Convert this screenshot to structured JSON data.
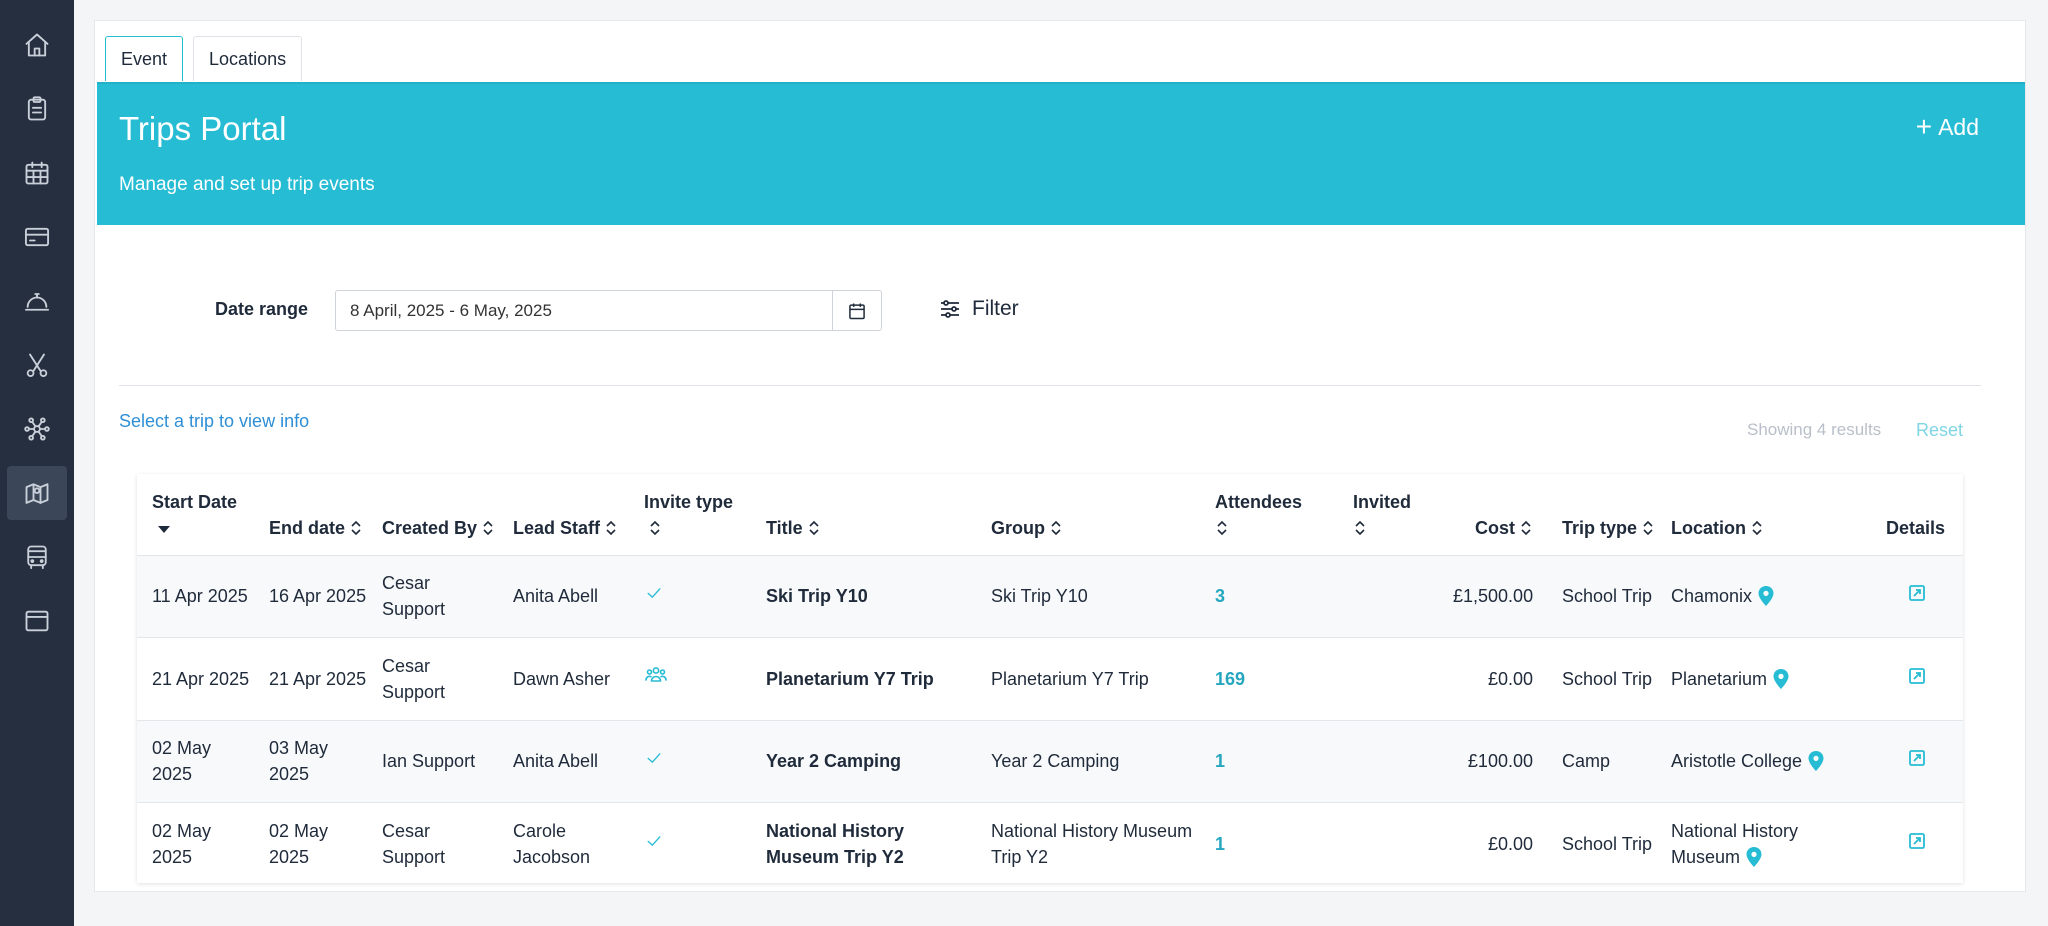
{
  "sidebar": {
    "items": [
      {
        "icon": "home-icon",
        "active": false
      },
      {
        "icon": "clipboard-icon",
        "active": false
      },
      {
        "icon": "calendar-grid-icon",
        "active": false
      },
      {
        "icon": "card-icon",
        "active": false
      },
      {
        "icon": "bell-service-icon",
        "active": false
      },
      {
        "icon": "scissors-icon",
        "active": false
      },
      {
        "icon": "network-icon",
        "active": false
      },
      {
        "icon": "map-icon",
        "active": true
      },
      {
        "icon": "bus-icon",
        "active": false
      },
      {
        "icon": "window-icon",
        "active": false
      }
    ]
  },
  "tabs": [
    {
      "label": "Event",
      "active": true
    },
    {
      "label": "Locations",
      "active": false
    }
  ],
  "banner": {
    "title": "Trips Portal",
    "subtitle": "Manage and set up trip events",
    "add_label": "Add"
  },
  "filters": {
    "date_label": "Date range",
    "date_value": "8 April, 2025 - 6 May, 2025",
    "filter_label": "Filter"
  },
  "hint": "Select a trip to view info",
  "results_text": "Showing 4 results",
  "reset_label": "Reset",
  "colors": {
    "accent": "#26bcd4",
    "sidebar": "#262f3f",
    "link": "#2e8fd6"
  },
  "table": {
    "headers": {
      "start_date": "Start Date",
      "end_date": "End date",
      "created_by": "Created By",
      "lead_staff": "Lead Staff",
      "invite_type": "Invite type",
      "title": "Title",
      "group": "Group",
      "attendees": "Attendees",
      "invited": "Invited",
      "cost": "Cost",
      "trip_type": "Trip type",
      "location": "Location",
      "details": "Details"
    },
    "rows": [
      {
        "start": "11 Apr 2025",
        "end": "16 Apr 2025",
        "created_by": "Cesar Support",
        "lead": "Anita Abell",
        "invite_icon": "check-icon",
        "title": "Ski Trip Y10",
        "group": "Ski Trip Y10",
        "attendees": "3",
        "invited": "",
        "cost": "£1,500.00",
        "trip_type": "School Trip",
        "location": "Chamonix"
      },
      {
        "start": "21 Apr 2025",
        "end": "21 Apr 2025",
        "created_by": "Cesar Support",
        "lead": "Dawn Asher",
        "invite_icon": "group-icon",
        "title": "Planetarium Y7 Trip",
        "group": "Planetarium Y7 Trip",
        "attendees": "169",
        "invited": "",
        "cost": "£0.00",
        "trip_type": "School Trip",
        "location": "Planetarium"
      },
      {
        "start": "02 May 2025",
        "end": "03 May 2025",
        "created_by": "Ian Support",
        "lead": "Anita Abell",
        "invite_icon": "check-icon",
        "title": "Year 2 Camping",
        "group": "Year 2 Camping",
        "attendees": "1",
        "invited": "",
        "cost": "£100.00",
        "trip_type": "Camp",
        "location": "Aristotle College"
      },
      {
        "start": "02 May 2025",
        "end": "02 May 2025",
        "created_by": "Cesar Support",
        "lead": "Carole Jacobson",
        "invite_icon": "check-icon",
        "title": "National History Museum Trip Y2",
        "group": "National History Museum Trip Y2",
        "attendees": "1",
        "invited": "",
        "cost": "£0.00",
        "trip_type": "School Trip",
        "location": "National History Museum"
      }
    ]
  }
}
